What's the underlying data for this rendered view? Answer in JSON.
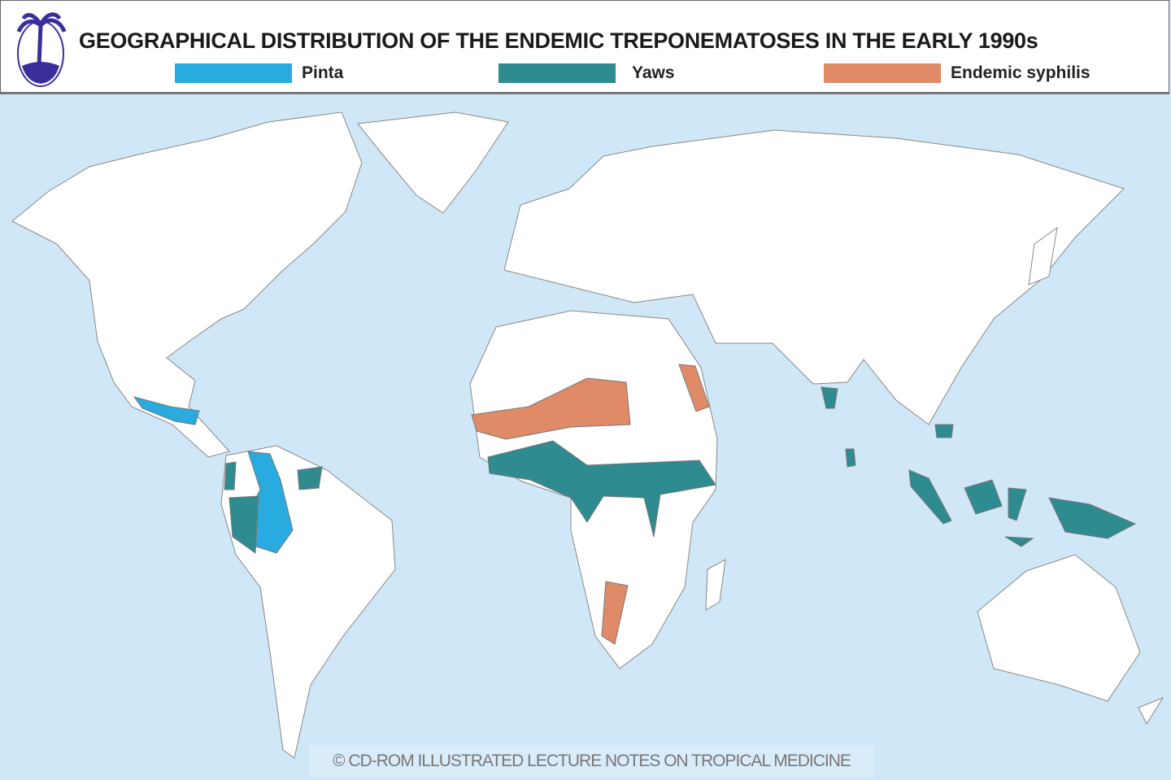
{
  "title": "GEOGRAPHICAL DISTRIBUTION OF THE ENDEMIC TREPONEMATOSES IN THE EARLY 1990s",
  "legend": [
    {
      "label": "Pinta",
      "color": "#29abe0"
    },
    {
      "label": "Yaws",
      "color": "#2e8b8f"
    },
    {
      "label": "Endemic syphilis",
      "color": "#e08a68"
    }
  ],
  "map": {
    "ocean_color": "#cfe7f7",
    "regions": {
      "pinta": [
        "Mexico",
        "Colombia / Amazon"
      ],
      "yaws": [
        "Colombia",
        "Guyana / Suriname",
        "Peru / Ecuador",
        "West & Central Africa",
        "India",
        "Sri Lanka",
        "Southeast Asia",
        "Indonesia",
        "Papua New Guinea"
      ],
      "endemic_syphilis": [
        "Sahel",
        "Arabian Peninsula",
        "Botswana"
      ]
    }
  },
  "credit": "© CD-ROM ILLUSTRATED LECTURE NOTES ON TROPICAL MEDICINE"
}
